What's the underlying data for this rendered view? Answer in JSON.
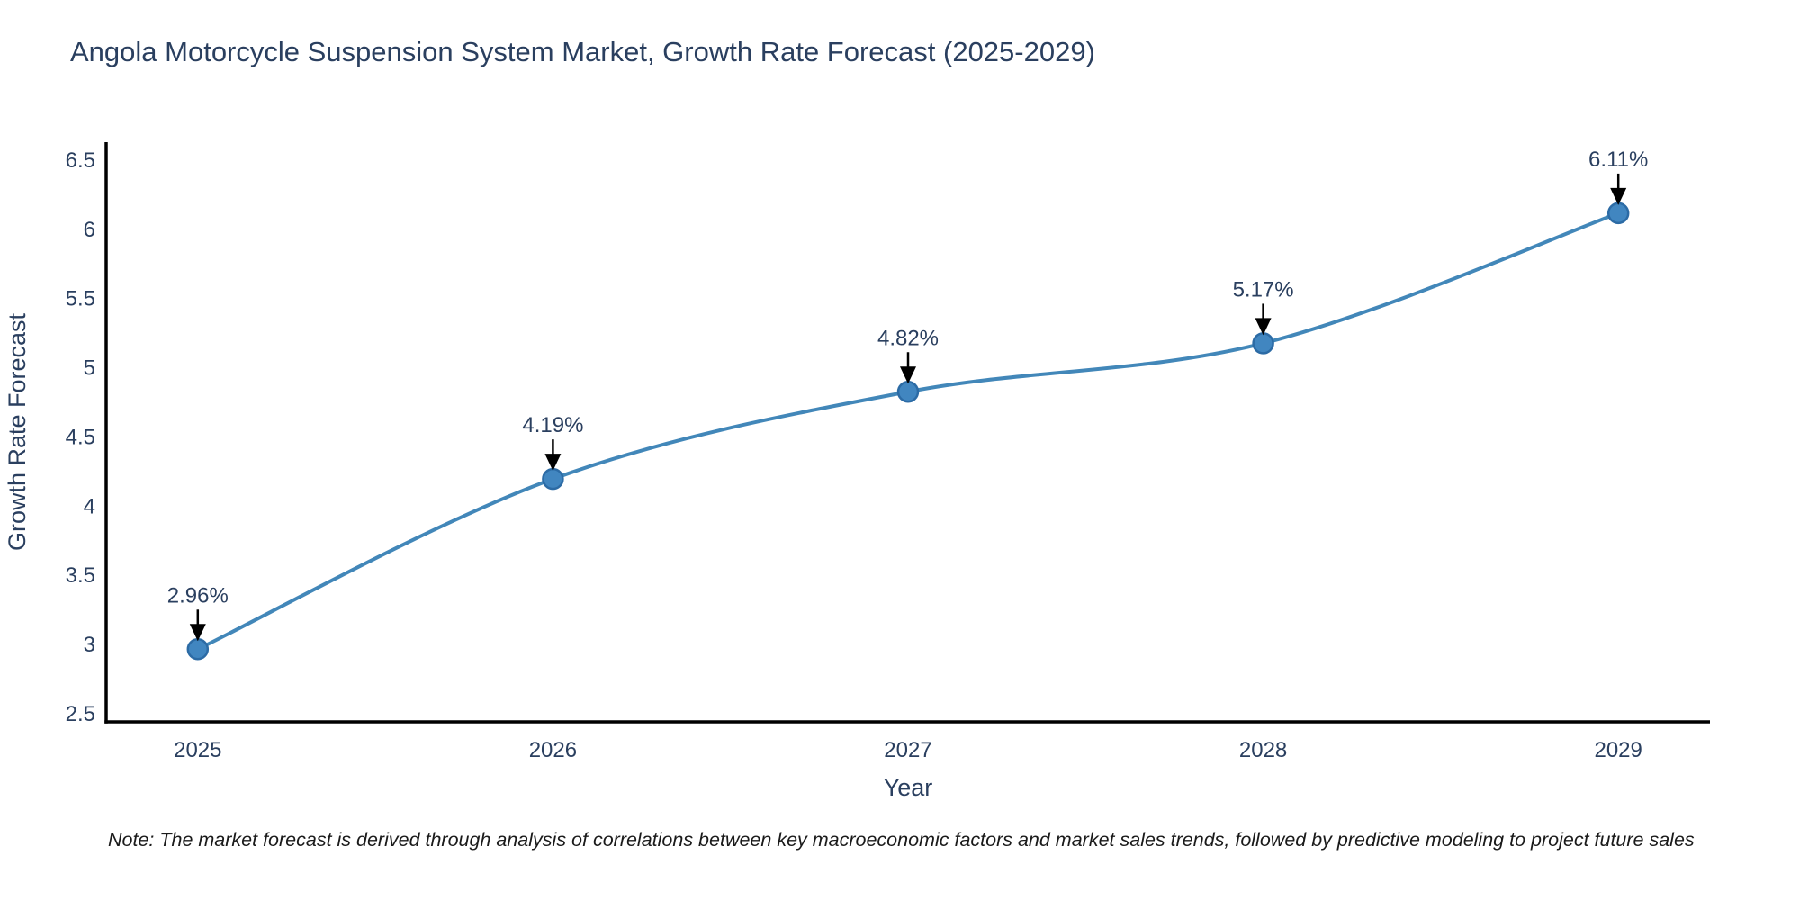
{
  "title": "Angola Motorcycle Suspension System Market, Growth Rate Forecast (2025-2029)",
  "note": "Note: The market forecast is derived through analysis of correlations between key macroeconomic factors and market sales trends, followed by predictive modeling to project future sales",
  "chart_data": {
    "type": "line",
    "title": "Angola Motorcycle Suspension System Market, Growth Rate Forecast (2025-2029)",
    "xlabel": "Year",
    "ylabel": "Growth Rate Forecast",
    "categories": [
      2025,
      2026,
      2027,
      2028,
      2029
    ],
    "values": [
      2.96,
      4.19,
      4.82,
      5.17,
      6.11
    ],
    "point_labels": [
      "2.96%",
      "4.19%",
      "4.82%",
      "5.17%",
      "6.11%"
    ],
    "y_ticks": [
      2.5,
      3,
      3.5,
      4,
      4.5,
      5,
      5.5,
      6,
      6.5
    ],
    "ylim": [
      2.435,
      6.623
    ],
    "xlim": [
      2024.742,
      2029.258
    ],
    "grid": false,
    "legend_position": "none",
    "line_shape": "spline",
    "annotation_arrows": "down",
    "colors": {
      "line": "#4287b9",
      "marker_fill": "#4186c0",
      "marker_edge": "#2c6ba5",
      "arrow": "#000000",
      "text": "#2a3f5f",
      "axis": "#000000",
      "background": "#ffffff"
    }
  }
}
